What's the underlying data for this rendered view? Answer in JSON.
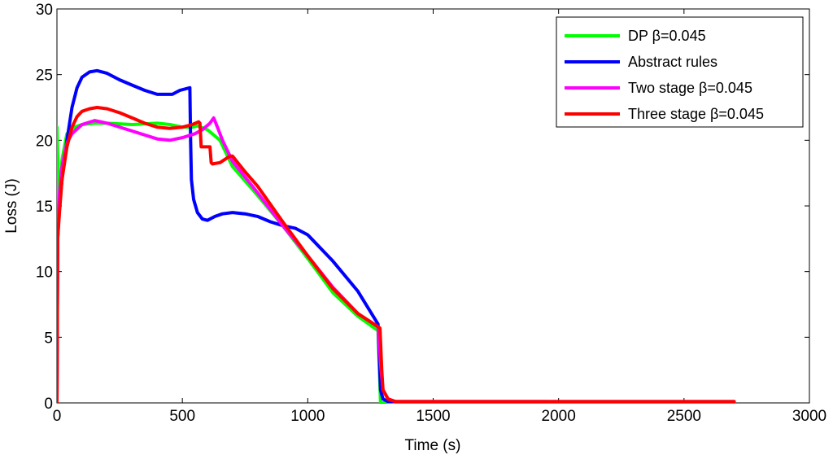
{
  "chart_data": {
    "type": "line",
    "title": "",
    "xlabel": "Time (s)",
    "ylabel": "Loss (J)",
    "xlim": [
      0,
      3000
    ],
    "ylim": [
      0,
      30
    ],
    "xticks": [
      0,
      500,
      1000,
      1500,
      2000,
      2500,
      3000
    ],
    "yticks": [
      0,
      5,
      10,
      15,
      20,
      25,
      30
    ],
    "xtick_labels": [
      "0",
      "500",
      "1000",
      "1500",
      "2000",
      "2500",
      "3000"
    ],
    "ytick_labels": [
      "0",
      "5",
      "10",
      "15",
      "20",
      "25",
      "30"
    ],
    "grid": false,
    "legend_position": "top-right",
    "series": [
      {
        "name": "DP β=0.045",
        "color": "#00ff00",
        "x": [
          0,
          0,
          8,
          20,
          40,
          70,
          100,
          150,
          200,
          300,
          400,
          450,
          500,
          540,
          560,
          600,
          650,
          700,
          800,
          900,
          1000,
          1100,
          1200,
          1280,
          1290,
          1300,
          2700
        ],
        "y": [
          0,
          21,
          15,
          18.5,
          20.5,
          21,
          21.2,
          21.3,
          21.3,
          21.2,
          21.3,
          21.2,
          21,
          21,
          21.1,
          20.8,
          20,
          18,
          15.8,
          13.5,
          11,
          8.4,
          6.6,
          5.5,
          0,
          0,
          0
        ]
      },
      {
        "name": "Abstract rules",
        "color": "#0000ff",
        "x": [
          0,
          3,
          8,
          20,
          40,
          60,
          80,
          100,
          130,
          160,
          200,
          250,
          300,
          350,
          400,
          430,
          460,
          490,
          530,
          533,
          536,
          545,
          560,
          580,
          600,
          630,
          660,
          700,
          750,
          800,
          850,
          900,
          950,
          1000,
          1100,
          1200,
          1280,
          1285,
          1290,
          1300,
          1320,
          1350,
          1400,
          1500,
          1600,
          1800,
          2000,
          2200,
          2400,
          2600,
          2700
        ],
        "y": [
          0,
          12.5,
          14.5,
          17,
          20,
          22.5,
          24,
          24.8,
          25.2,
          25.3,
          25.1,
          24.6,
          24.2,
          23.8,
          23.5,
          23.5,
          23.5,
          23.8,
          24,
          20,
          17,
          15.5,
          14.5,
          14,
          13.9,
          14.2,
          14.4,
          14.5,
          14.4,
          14.2,
          13.8,
          13.5,
          13.3,
          12.8,
          10.8,
          8.5,
          6,
          3.5,
          1,
          0.3,
          0.1,
          0.1,
          0.1,
          0.1,
          0.1,
          0.1,
          0.1,
          0.1,
          0.1,
          0.1,
          0.1
        ]
      },
      {
        "name": "Two stage β=0.045",
        "color": "#ff00ff",
        "x": [
          0,
          3,
          10,
          20,
          40,
          60,
          100,
          150,
          200,
          300,
          400,
          450,
          500,
          550,
          580,
          610,
          625,
          640,
          660,
          700,
          800,
          900,
          1000,
          1100,
          1200,
          1280,
          1290,
          1300,
          1320,
          1350,
          1400,
          1700,
          1950
        ],
        "y": [
          0,
          13.5,
          16,
          18,
          19.8,
          20.5,
          21.2,
          21.5,
          21.3,
          20.7,
          20.1,
          20,
          20.2,
          20.5,
          20.8,
          21.3,
          21.7,
          21,
          20,
          18.4,
          16,
          13.5,
          11.2,
          8.8,
          6.8,
          5.8,
          3,
          1,
          0.3,
          0.1,
          0.1,
          0.1,
          0.1
        ]
      },
      {
        "name": "Three stage β=0.045",
        "color": "#ff0000",
        "x": [
          0,
          3,
          10,
          20,
          40,
          60,
          80,
          100,
          130,
          160,
          200,
          250,
          300,
          350,
          400,
          450,
          500,
          540,
          565,
          570,
          575,
          610,
          615,
          620,
          650,
          690,
          700,
          750,
          800,
          900,
          1000,
          1100,
          1200,
          1280,
          1288,
          1295,
          1300,
          1320,
          1350,
          1400,
          1600,
          2000,
          2400,
          2700
        ],
        "y": [
          0,
          12.5,
          14.5,
          17,
          19.5,
          21,
          21.8,
          22.2,
          22.4,
          22.5,
          22.4,
          22.1,
          21.7,
          21.3,
          21,
          20.9,
          21,
          21.2,
          21.4,
          21.3,
          19.5,
          19.5,
          18.3,
          18.2,
          18.3,
          18.8,
          18.8,
          17.6,
          16.5,
          13.8,
          11.2,
          8.7,
          6.8,
          5.8,
          5.7,
          2.5,
          1,
          0.3,
          0.1,
          0.1,
          0.1,
          0.1,
          0.1,
          0.1
        ]
      }
    ]
  }
}
